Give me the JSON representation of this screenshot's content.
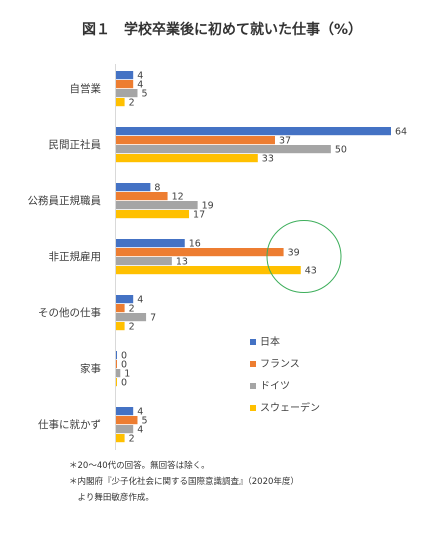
{
  "chart_data": {
    "type": "bar",
    "orientation": "horizontal",
    "title": "図１　学校卒業後に初めて就いた仕事（%）",
    "categories": [
      "自営業",
      "民間正社員",
      "公務員正規職員",
      "非正規雇用",
      "その他の仕事",
      "家事",
      "仕事に就かず"
    ],
    "series": [
      {
        "name": "日本",
        "color": "#4472C4",
        "values": [
          4,
          64,
          8,
          16,
          4,
          0,
          4
        ]
      },
      {
        "name": "フランス",
        "color": "#ED7D31",
        "values": [
          4,
          37,
          12,
          39,
          2,
          0,
          5
        ]
      },
      {
        "name": "ドイツ",
        "color": "#A5A5A5",
        "values": [
          5,
          50,
          19,
          13,
          7,
          1,
          4
        ]
      },
      {
        "name": "スウェーデン",
        "color": "#FFC000",
        "values": [
          2,
          33,
          17,
          43,
          2,
          0,
          2
        ]
      }
    ],
    "xlim": [
      0,
      64
    ],
    "legend_position": "right",
    "grid": false,
    "highlight": {
      "category": "非正規雇用",
      "shape": "circle",
      "color": "#3DAE5B"
    }
  },
  "notes": [
    "＊20～40代の回答。無回答は除く。",
    "＊内閣府『少子化社会に関する国際意識調査』（2020年度）",
    "　より舞田敏彦作成。"
  ]
}
